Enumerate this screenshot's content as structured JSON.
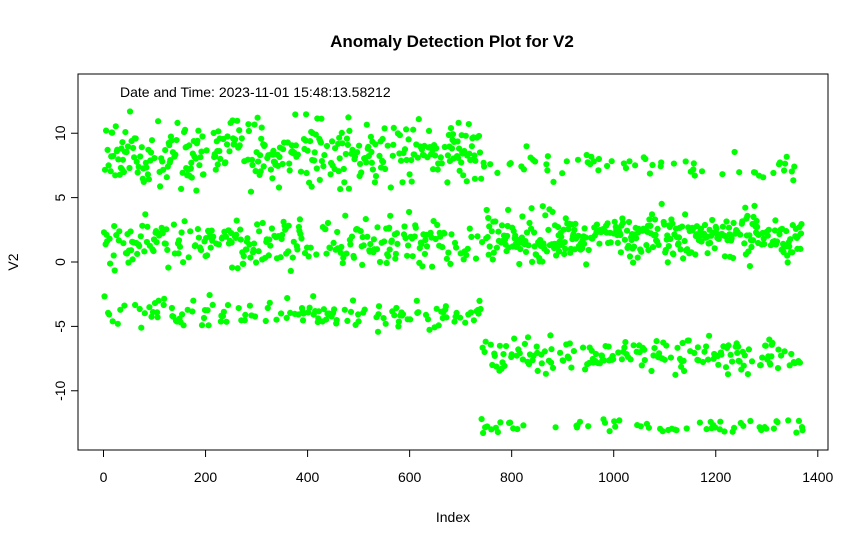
{
  "chart_data": {
    "type": "scatter",
    "title": "Anomaly Detection Plot for V2",
    "xlabel": "Index",
    "ylabel": "V2",
    "annotation": "Date and Time:  2023-11-01 15:48:13.58212",
    "xlim": [
      -50,
      1420
    ],
    "ylim": [
      -14.6,
      14.6
    ],
    "xticks": [
      0,
      200,
      400,
      600,
      800,
      1000,
      1200,
      1400
    ],
    "yticks": [
      -10,
      -5,
      0,
      5,
      10
    ],
    "point_color": "#00ff00",
    "grid": false,
    "n_points": 1370,
    "regimes": [
      {
        "x_range": [
          1,
          740
        ],
        "clusters": [
          {
            "center": 8.5,
            "spread": 2.0,
            "weight": 0.46
          },
          {
            "center": 1.5,
            "spread": 1.6,
            "weight": 0.34
          },
          {
            "center": -4.0,
            "spread": 1.0,
            "weight": 0.2
          }
        ]
      },
      {
        "x_range": [
          741,
          1370
        ],
        "clusters": [
          {
            "center": 2.0,
            "spread": 1.6,
            "weight": 0.55
          },
          {
            "center": -7.2,
            "spread": 1.2,
            "weight": 0.28
          },
          {
            "center": 7.5,
            "spread": 1.0,
            "weight": 0.08
          },
          {
            "center": -12.8,
            "spread": 0.5,
            "weight": 0.09
          }
        ]
      }
    ]
  }
}
